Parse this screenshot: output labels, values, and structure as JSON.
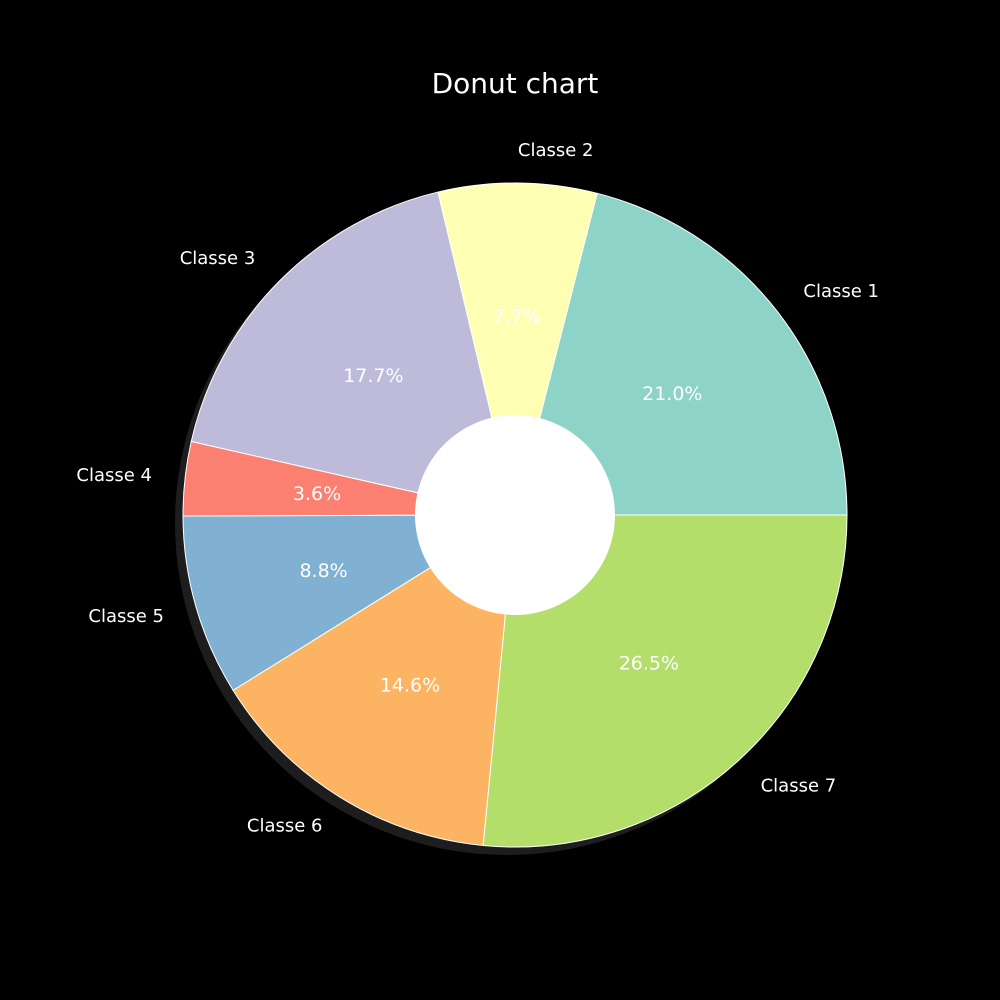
{
  "chart_data": {
    "type": "pie",
    "variant": "donut",
    "title": "Donut chart",
    "start_angle_deg": 0,
    "direction": "counterclockwise",
    "shadow": true,
    "hole_color": "#ffffff",
    "background_color": "#000000",
    "categories": [
      "Classe 1",
      "Classe 2",
      "Classe 3",
      "Classe 4",
      "Classe 5",
      "Classe 6",
      "Classe 7"
    ],
    "values": [
      21.0,
      7.7,
      17.7,
      3.6,
      8.8,
      14.6,
      26.5
    ],
    "value_labels": [
      "21.0%",
      "7.7%",
      "17.7%",
      "3.6%",
      "8.8%",
      "14.6%",
      "26.5%"
    ],
    "colors": [
      "#8dd3c7",
      "#ffffb3",
      "#bebada",
      "#fb8072",
      "#80b1d3",
      "#fdb462",
      "#b3de69"
    ]
  }
}
